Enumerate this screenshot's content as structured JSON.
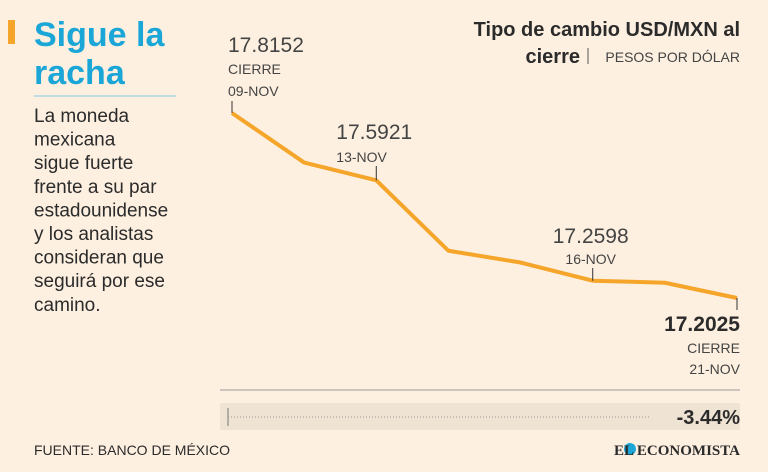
{
  "headline": [
    "Sigue la",
    "racha"
  ],
  "description": [
    "La moneda",
    "mexicana",
    "sigue fuerte",
    "frente a su par",
    "estadounidense",
    "y los analistas",
    "consideran que",
    "seguirá por ese",
    "camino."
  ],
  "chart_data": {
    "type": "line",
    "title": [
      "Tipo de cambio USD/MXN al",
      "cierre"
    ],
    "subtitle": "PESOS POR DÓLAR",
    "categories": [
      "09-NOV",
      null,
      "13-NOV",
      null,
      null,
      "16-NOV",
      null,
      "21-NOV"
    ],
    "values": [
      17.8152,
      17.651,
      17.5921,
      17.359,
      17.32,
      17.2598,
      17.253,
      17.2025
    ],
    "color": "#f5a52a",
    "close_label": "CIERRE",
    "change_label": "-3.44%"
  },
  "source": "FUENTE: BANCO DE MÉXICO",
  "brand": "EL ECONOMISTA"
}
